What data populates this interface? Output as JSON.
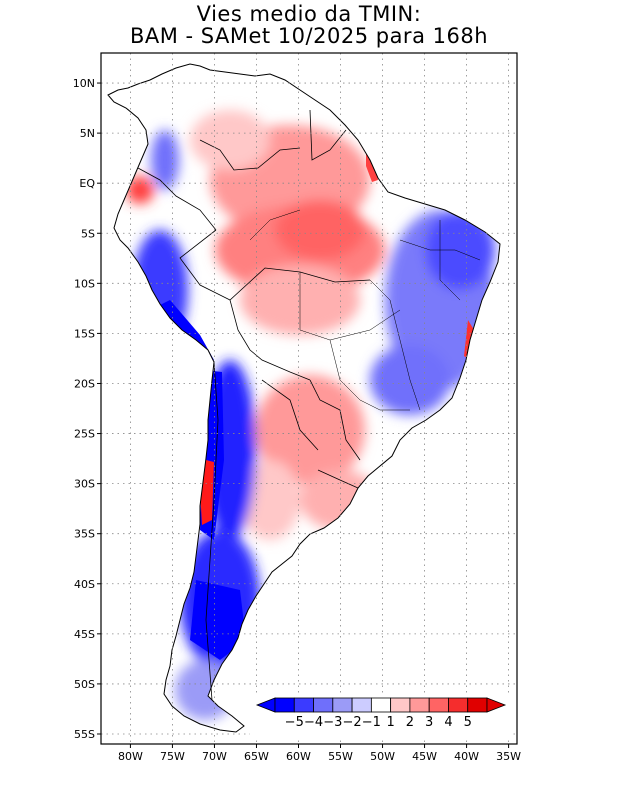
{
  "title": {
    "line1": "Vies medio da TMIN:",
    "line2": "BAM - SAMet 10/2025  para 168h"
  },
  "axes": {
    "lat_labels": [
      "10N",
      "5N",
      "EQ",
      "5S",
      "10S",
      "15S",
      "20S",
      "25S",
      "30S",
      "35S",
      "40S",
      "45S",
      "50S",
      "55S"
    ],
    "lat_values": [
      10,
      5,
      0,
      -5,
      -10,
      -15,
      -20,
      -25,
      -30,
      -35,
      -40,
      -45,
      -50,
      -55
    ],
    "lon_labels": [
      "80W",
      "75W",
      "70W",
      "65W",
      "60W",
      "55W",
      "50W",
      "45W",
      "40W",
      "35W"
    ],
    "lon_values": [
      -80,
      -75,
      -70,
      -65,
      -60,
      -55,
      -50,
      -45,
      -40,
      -35
    ],
    "lon_range": [
      -83.5,
      -34
    ],
    "lat_range": [
      -56,
      13
    ]
  },
  "colorbar": {
    "labels": [
      "-5",
      "-4",
      "-3",
      "-2",
      "-1",
      "1",
      "2",
      "3",
      "4",
      "5"
    ],
    "colors": [
      "#0000ff",
      "#3b3bff",
      "#6f6ffb",
      "#9b9bf7",
      "#ccccff",
      "#ffffff",
      "#ffc8c8",
      "#ff9999",
      "#ff6464",
      "#f52d2d",
      "#e00000"
    ],
    "low_end_color": "#0000ff",
    "high_end_color": "#e00000"
  },
  "colors": {
    "land": "#ffffff",
    "coast": "#000000",
    "grid": "#888888"
  }
}
